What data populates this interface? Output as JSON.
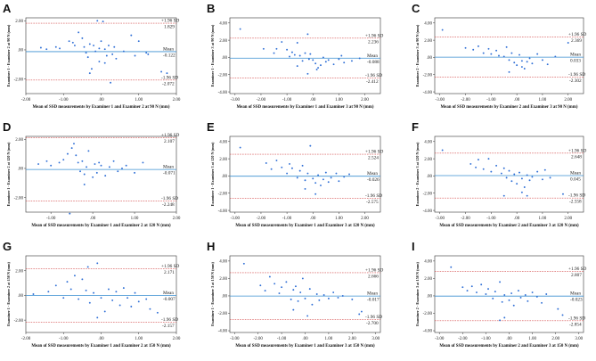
{
  "chart_data": [
    {
      "panel": "A",
      "type": "scatter",
      "xlabel": "Mean of SSD measurements by Examiner 1 and Examiner 2 at 90 N (mm)",
      "ylabel": "Examiner 1 - Examiner 2 at 90 N (mm)",
      "xlim": [
        -2.0,
        2.0
      ],
      "ylim": [
        -3.0,
        2.2
      ],
      "xticks": [
        -2.0,
        -1.0,
        0.0,
        1.0,
        2.0
      ],
      "xtick_labels": [
        "-2.00",
        "-1.00",
        ".00",
        "1.00",
        "2.00"
      ],
      "yticks": [
        -2.0,
        0.0,
        2.0
      ],
      "ytick_labels": [
        "-2.00",
        ".00",
        "2.00"
      ],
      "mean": -0.122,
      "upper_loa": 1.829,
      "lower_loa": -2.072,
      "mean_label": "Mean",
      "mean_value": "-0.122",
      "upper_label": "+1.96 SD",
      "upper_value": "1.829",
      "lower_label": "-1.96 SD",
      "lower_value": "-2.072",
      "x": [
        -1.6,
        -1.45,
        -1.2,
        -1.1,
        -0.85,
        -0.75,
        -0.7,
        -0.6,
        -0.5,
        -0.45,
        -0.4,
        -0.35,
        -0.3,
        -0.25,
        -0.2,
        -0.15,
        -0.1,
        -0.05,
        0.0,
        0.05,
        0.1,
        0.15,
        0.2,
        0.25,
        0.3,
        0.35,
        0.4,
        0.6,
        0.8,
        0.9,
        1.0,
        1.2,
        1.25,
        1.6,
        1.75,
        -0.05,
        0.1,
        -0.3
      ],
      "y": [
        0.15,
        0.05,
        0.2,
        0.1,
        0.6,
        0.5,
        0.3,
        1.2,
        0.8,
        0.2,
        -0.2,
        -0.5,
        0.4,
        -1.3,
        0.3,
        -0.1,
        2.0,
        0.1,
        0.6,
        1.95,
        0.05,
        -0.4,
        0.3,
        -2.25,
        -0.3,
        0.2,
        -0.6,
        -0.1,
        1.0,
        -0.4,
        0.6,
        -0.2,
        -0.3,
        -1.5,
        -1.6,
        -0.8,
        -0.9,
        -1.6
      ]
    },
    {
      "panel": "B",
      "type": "scatter",
      "xlabel": "Mean of SSD measurements by Examiner 1 and Examiner 3 at 90 N (mm)",
      "ylabel": "Examiner 1 - Examiner 3 at 90 N (mm)",
      "xlim": [
        -3.2,
        2.6
      ],
      "ylim": [
        -4.2,
        4.6
      ],
      "xticks": [
        -3.0,
        -2.0,
        -1.0,
        0.0,
        1.0,
        2.0
      ],
      "xtick_labels": [
        "-3.00",
        "-2.00",
        "-1.00",
        ".00",
        "1.00",
        "2.00"
      ],
      "yticks": [
        -4.0,
        -2.0,
        0.0,
        2.0,
        4.0
      ],
      "ytick_labels": [
        "-4.00",
        "-2.00",
        ".00",
        "2.00",
        "4.00"
      ],
      "mean": -0.088,
      "upper_loa": 2.236,
      "lower_loa": -2.412,
      "mean_label": "Mean",
      "mean_value": "-0.088",
      "upper_label": "+1.96 SD",
      "upper_value": "2.236",
      "lower_label": "-1.96 SD",
      "lower_value": "-2.412",
      "x": [
        -2.8,
        -1.9,
        -1.5,
        -1.4,
        -1.2,
        -1.0,
        -0.9,
        -0.8,
        -0.7,
        -0.6,
        -0.5,
        -0.4,
        -0.3,
        -0.2,
        -0.15,
        -0.1,
        0.0,
        0.1,
        0.2,
        0.3,
        0.4,
        0.5,
        0.6,
        0.8,
        1.0,
        1.1,
        1.2,
        1.5,
        1.8,
        -0.2,
        0.15,
        -0.6
      ],
      "y": [
        3.3,
        1.0,
        0.5,
        1.0,
        1.8,
        0.9,
        0.1,
        0.6,
        0.3,
        1.7,
        0.2,
        -0.4,
        0.5,
        2.7,
        -0.2,
        0.4,
        -0.3,
        -0.7,
        -1.2,
        -0.9,
        0.0,
        -0.5,
        -0.3,
        -0.8,
        -0.2,
        0.2,
        -0.6,
        -0.4,
        -0.1,
        -1.9,
        -1.4,
        -1.0
      ]
    },
    {
      "panel": "C",
      "type": "scatter",
      "xlabel": "Mean of SSD measurements by Examiner 2 and Examiner 3 at 90 N (mm)",
      "ylabel": "Examiner 2 - Examiner 3 at 90 N (mm)",
      "xlim": [
        -3.2,
        2.6
      ],
      "ylim": [
        -4.2,
        4.6
      ],
      "xticks": [
        -3.0,
        -2.0,
        -1.0,
        0.0,
        1.0,
        2.0
      ],
      "xtick_labels": [
        "-3.00",
        "-2.00",
        "-1.00",
        ".00",
        "1.00",
        "2.00"
      ],
      "yticks": [
        -4.0,
        -2.0,
        0.0,
        2.0,
        4.0
      ],
      "ytick_labels": [
        "-4.00",
        "-2.00",
        ".00",
        "2.00",
        "4.00"
      ],
      "mean": 0.033,
      "upper_loa": 2.369,
      "lower_loa": -2.302,
      "mean_label": "Mean",
      "mean_value": "0.033",
      "upper_label": "+1.96 SD",
      "upper_value": "2.369",
      "lower_label": "-1.96 SD",
      "lower_value": "-2.302",
      "x": [
        -2.9,
        -2.0,
        -1.7,
        -1.5,
        -1.3,
        -1.1,
        -1.0,
        -0.8,
        -0.7,
        -0.5,
        -0.4,
        -0.3,
        -0.2,
        -0.1,
        0.0,
        0.1,
        0.2,
        0.3,
        0.4,
        0.5,
        0.6,
        0.8,
        1.0,
        1.2,
        1.5,
        2.0,
        -0.3,
        0.2
      ],
      "y": [
        3.2,
        1.1,
        0.9,
        1.3,
        0.5,
        1.0,
        0.4,
        0.8,
        0.2,
        0.1,
        1.2,
        -0.3,
        0.5,
        -0.6,
        -0.9,
        0.3,
        -0.4,
        -1.3,
        -0.5,
        -0.1,
        -0.7,
        0.4,
        -0.3,
        -0.8,
        0.1,
        1.7,
        -1.7,
        -1.1
      ]
    },
    {
      "panel": "D",
      "type": "scatter",
      "xlabel": "Mean of SSD measurements by Examiner 1 and Examiner 2 at 120 N (mm)",
      "ylabel": "Examiner 1 - Examiner 2 at 120 N (mm)",
      "xlim": [
        -1.6,
        2.0
      ],
      "ylim": [
        -3.0,
        2.2
      ],
      "xticks": [
        -1.0,
        0.0,
        1.0,
        2.0
      ],
      "xtick_labels": [
        "-1.00",
        ".00",
        "1.00",
        "2.00"
      ],
      "yticks": [
        -2.0,
        0.0,
        2.0
      ],
      "ytick_labels": [
        "-2.00",
        ".00",
        "2.00"
      ],
      "mean": -0.071,
      "upper_loa": 2.107,
      "lower_loa": -2.248,
      "mean_label": "Mean",
      "mean_value": "-0.071",
      "upper_label": "+1.96 SD",
      "upper_value": "2.107",
      "lower_label": "-1.96 SD",
      "lower_value": "-2.248",
      "x": [
        -1.3,
        -1.1,
        -1.0,
        -0.8,
        -0.7,
        -0.6,
        -0.5,
        -0.45,
        -0.4,
        -0.35,
        -0.3,
        -0.25,
        -0.2,
        -0.15,
        -0.1,
        0.0,
        0.05,
        0.1,
        0.15,
        0.2,
        0.3,
        0.4,
        0.5,
        0.6,
        0.7,
        0.8,
        1.0,
        1.2,
        -0.55,
        -0.2
      ],
      "y": [
        0.3,
        0.5,
        0.2,
        0.4,
        0.6,
        1.0,
        1.4,
        1.7,
        0.9,
        0.4,
        -0.2,
        0.5,
        -0.4,
        0.1,
        1.2,
        -0.6,
        0.3,
        -0.3,
        0.4,
        0.2,
        -0.5,
        0.1,
        0.5,
        -0.2,
        0.0,
        0.2,
        -0.3,
        0.4,
        -3.1,
        -1.1
      ]
    },
    {
      "panel": "E",
      "type": "scatter",
      "xlabel": "Mean of SSD measurements by Examiner 1 and Examiner 3 at 120 N (mm)",
      "ylabel": "Examiner 1 - Examiner 3 at 120 N (mm)",
      "xlim": [
        -3.2,
        2.6
      ],
      "ylim": [
        -4.2,
        4.6
      ],
      "xticks": [
        -3.0,
        -2.0,
        -1.0,
        0.0,
        1.0,
        2.0
      ],
      "xtick_labels": [
        "-3.00",
        "-2.00",
        "-1.00",
        ".00",
        "1.00",
        "2.00"
      ],
      "yticks": [
        -4.0,
        -2.0,
        0.0,
        2.0,
        4.0
      ],
      "ytick_labels": [
        "-4.00",
        "-2.00",
        ".00",
        "2.00",
        "4.00"
      ],
      "mean": -0.026,
      "upper_loa": 2.524,
      "lower_loa": -2.575,
      "mean_label": "Mean",
      "mean_value": "-0.026",
      "upper_label": "+1.96 SD",
      "upper_value": "2.524",
      "lower_label": "-1.96 SD",
      "lower_value": "-2.575",
      "x": [
        -2.8,
        -1.8,
        -1.6,
        -1.4,
        -1.2,
        -1.0,
        -0.9,
        -0.8,
        -0.6,
        -0.5,
        -0.4,
        -0.3,
        -0.2,
        -0.1,
        0.0,
        0.1,
        0.2,
        0.3,
        0.4,
        0.5,
        0.6,
        0.7,
        0.9,
        1.0,
        1.2,
        1.4,
        -0.3,
        0.1
      ],
      "y": [
        3.3,
        1.5,
        0.8,
        1.8,
        1.0,
        0.3,
        1.4,
        0.9,
        -0.2,
        0.6,
        1.2,
        -0.5,
        0.3,
        3.5,
        -0.3,
        -0.8,
        0.1,
        -1.1,
        -0.4,
        0.4,
        -0.7,
        -0.2,
        0.3,
        -0.6,
        -0.1,
        0.2,
        -1.5,
        -2.1
      ]
    },
    {
      "panel": "F",
      "type": "scatter",
      "xlabel": "Mean of SSD measurements by Examiner 2 and Examiner 3 at 120 N (mm)",
      "ylabel": "Examiner 2 - Examiner 3 at 120 N (mm)",
      "xlim": [
        -3.2,
        2.6
      ],
      "ylim": [
        -4.2,
        4.6
      ],
      "xticks": [
        -3.0,
        -2.0,
        -1.0,
        0.0,
        1.0,
        2.0
      ],
      "xtick_labels": [
        "-3.00",
        "-2.00",
        "-1.00",
        ".00",
        "1.00",
        "2.00"
      ],
      "yticks": [
        -4.0,
        -2.0,
        0.0,
        2.0,
        4.0
      ],
      "ytick_labels": [
        "-4.00",
        "-2.00",
        ".00",
        "2.00",
        "4.00"
      ],
      "mean": 0.045,
      "upper_loa": 2.648,
      "lower_loa": -2.558,
      "mean_label": "Mean",
      "mean_value": "0.045",
      "upper_label": "+1.96 SD",
      "upper_value": "2.648",
      "lower_label": "-1.96 SD",
      "lower_value": "-2.558",
      "x": [
        -2.9,
        -1.8,
        -1.6,
        -1.5,
        -1.3,
        -1.1,
        -1.0,
        -0.8,
        -0.6,
        -0.5,
        -0.4,
        -0.3,
        -0.2,
        -0.1,
        0.0,
        0.1,
        0.2,
        0.3,
        0.4,
        0.5,
        0.6,
        0.8,
        1.0,
        1.1,
        1.3,
        1.8,
        -0.5,
        0.2,
        0.4
      ],
      "y": [
        3.0,
        1.4,
        1.0,
        1.9,
        0.8,
        2.0,
        0.5,
        1.2,
        0.3,
        0.9,
        -0.2,
        0.6,
        -0.6,
        0.2,
        -0.9,
        0.4,
        -0.3,
        -1.3,
        0.1,
        -0.5,
        -0.1,
        0.5,
        -0.4,
        0.7,
        -0.2,
        -2.1,
        -2.3,
        -1.9,
        -2.3
      ]
    },
    {
      "panel": "G",
      "type": "scatter",
      "xlabel": "Mean of SSD measurements by Examiner 1 and Examiner 2 at 150 N (mm)",
      "ylabel": "Examiner 1 - Examiner 2 at 150 N (mm)",
      "xlim": [
        -2.0,
        2.0
      ],
      "ylim": [
        -3.0,
        3.2
      ],
      "xticks": [
        -2.0,
        -1.0,
        0.0,
        1.0,
        2.0
      ],
      "xtick_labels": [
        "-2.00",
        "-1.00",
        ".00",
        "1.00",
        "2.00"
      ],
      "yticks": [
        -2.0,
        0.0,
        2.0
      ],
      "ytick_labels": [
        "-2.00",
        ".00",
        "2.00"
      ],
      "mean": -0.007,
      "upper_loa": 2.171,
      "lower_loa": -2.157,
      "mean_label": "Mean",
      "mean_value": "-0.007",
      "upper_label": "+1.96 SD",
      "upper_value": "2.171",
      "lower_label": "-1.96 SD",
      "lower_value": "-2.157",
      "x": [
        -1.8,
        -1.4,
        -1.2,
        -1.0,
        -0.9,
        -0.8,
        -0.7,
        -0.6,
        -0.5,
        -0.4,
        -0.35,
        -0.3,
        -0.2,
        -0.1,
        0.0,
        0.1,
        0.2,
        0.3,
        0.4,
        0.5,
        0.6,
        0.7,
        0.8,
        0.9,
        1.0,
        1.2,
        1.3,
        1.5,
        -0.1
      ],
      "y": [
        0.1,
        0.3,
        0.8,
        -0.2,
        1.1,
        0.5,
        1.6,
        -0.3,
        1.3,
        0.4,
        2.3,
        -0.6,
        0.2,
        2.6,
        -0.2,
        -1.3,
        0.5,
        -0.4,
        0.3,
        -0.8,
        0.6,
        -0.2,
        -0.9,
        0.2,
        -0.5,
        -0.3,
        -1.1,
        -1.4,
        -1.8
      ]
    },
    {
      "panel": "H",
      "type": "scatter",
      "xlabel": "Mean of SSD measurements by Examiner 1 and Examiner 3 at 150 N (mm)",
      "ylabel": "Examiner 1 - Examiner 3 at 150 N (mm)",
      "xlim": [
        -3.2,
        3.2
      ],
      "ylim": [
        -4.2,
        4.6
      ],
      "xticks": [
        -3.0,
        -2.0,
        -1.0,
        0.0,
        1.0,
        2.0,
        3.0
      ],
      "xtick_labels": [
        "-3.00",
        "-2.00",
        "-1.00",
        ".00",
        "1.00",
        "2.00",
        "3.00"
      ],
      "yticks": [
        -4.0,
        -2.0,
        0.0,
        2.0,
        4.0
      ],
      "ytick_labels": [
        "-4.00",
        "-2.00",
        ".00",
        "2.00",
        "4.00"
      ],
      "mean": -0.017,
      "upper_loa": 2.666,
      "lower_loa": -2.7,
      "mean_label": "Mean",
      "mean_value": "-0.017",
      "upper_label": "+1.96 SD",
      "upper_value": "2.666",
      "lower_label": "-1.96 SD",
      "lower_value": "-2.700",
      "x": [
        -2.6,
        -1.9,
        -1.7,
        -1.5,
        -1.3,
        -1.1,
        -1.0,
        -0.8,
        -0.6,
        -0.5,
        -0.4,
        -0.3,
        -0.2,
        -0.1,
        0.0,
        0.2,
        0.3,
        0.5,
        0.6,
        0.8,
        1.0,
        1.2,
        1.4,
        1.6,
        2.0,
        2.3,
        2.4,
        -0.5,
        0.1
      ],
      "y": [
        3.7,
        1.2,
        0.6,
        2.2,
        1.4,
        0.3,
        1.0,
        1.6,
        -0.4,
        0.7,
        1.1,
        -0.6,
        0.4,
        2.0,
        -0.3,
        0.8,
        -1.0,
        0.2,
        -0.5,
        0.1,
        -0.3,
        0.4,
        -0.2,
        0.0,
        -0.4,
        -2.1,
        -1.8,
        -1.6,
        -2.3
      ]
    },
    {
      "panel": "I",
      "type": "scatter",
      "xlabel": "Mean of SSD measurements by Examiner 2 and Examiner 3 at 150 N (mm)",
      "ylabel": "Examiner 2 - Examiner 3 at 150 N (mm)",
      "xlim": [
        -3.2,
        3.2
      ],
      "ylim": [
        -4.2,
        4.6
      ],
      "xticks": [
        -3.0,
        -2.0,
        -1.0,
        0.0,
        1.0,
        2.0,
        3.0
      ],
      "xtick_labels": [
        "-3.00",
        "-2.00",
        "-1.00",
        ".00",
        "1.00",
        "2.00",
        "3.00"
      ],
      "yticks": [
        -4.0,
        -2.0,
        0.0,
        2.0,
        4.0
      ],
      "ytick_labels": [
        "-4.00",
        "-2.00",
        ".00",
        "2.00",
        "4.00"
      ],
      "mean": -0.023,
      "upper_loa": 2.807,
      "lower_loa": -2.854,
      "mean_label": "Mean",
      "mean_value": "-0.023",
      "upper_label": "+1.96 SD",
      "upper_value": "2.807",
      "lower_label": "-1.96 SD",
      "lower_value": "-2.854",
      "x": [
        -2.5,
        -2.0,
        -1.8,
        -1.6,
        -1.4,
        -1.2,
        -1.0,
        -0.9,
        -0.7,
        -0.6,
        -0.4,
        -0.3,
        -0.2,
        0.0,
        0.1,
        0.2,
        0.4,
        0.5,
        0.7,
        0.8,
        1.0,
        1.2,
        1.4,
        1.6,
        2.1,
        2.3,
        -0.4,
        -0.2
      ],
      "y": [
        3.3,
        1.0,
        0.6,
        1.1,
        0.4,
        1.3,
        0.2,
        0.8,
        -0.3,
        0.5,
        1.6,
        -0.7,
        0.1,
        -0.5,
        0.3,
        -1.1,
        0.6,
        -0.2,
        0.1,
        -0.6,
        0.4,
        -0.1,
        -0.8,
        0.2,
        -1.5,
        -2.2,
        -2.8,
        -2.5
      ]
    }
  ]
}
